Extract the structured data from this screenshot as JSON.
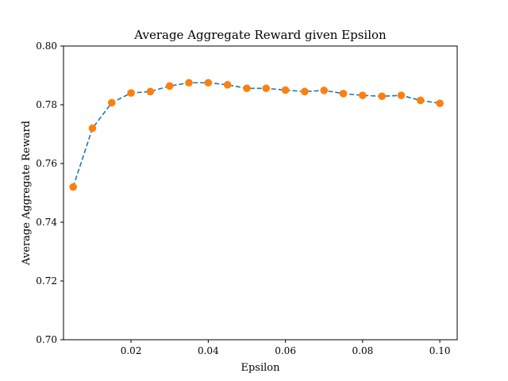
{
  "chart_data": {
    "type": "line",
    "title": "Average Aggregate Reward given Epsilon",
    "xlabel": "Epsilon",
    "ylabel": "Average Aggregate Reward",
    "xlim": [
      0.0025,
      0.1045
    ],
    "ylim": [
      0.7,
      0.8
    ],
    "xticks": [
      0.02,
      0.04,
      0.06,
      0.08,
      0.1
    ],
    "xtick_labels": [
      "0.02",
      "0.04",
      "0.06",
      "0.08",
      "0.10"
    ],
    "yticks": [
      0.7,
      0.72,
      0.74,
      0.76,
      0.78,
      0.8
    ],
    "ytick_labels": [
      "0.70",
      "0.72",
      "0.74",
      "0.76",
      "0.78",
      "0.80"
    ],
    "grid": false,
    "series": [
      {
        "line_color": "#1f77b4",
        "line_style": "dashed",
        "marker_color": "#ff7f0e",
        "marker": "circle",
        "x": [
          0.005,
          0.01,
          0.015,
          0.02,
          0.025,
          0.03,
          0.035,
          0.04,
          0.045,
          0.05,
          0.055,
          0.06,
          0.065,
          0.07,
          0.075,
          0.08,
          0.085,
          0.09,
          0.095,
          0.1
        ],
        "y": [
          0.752,
          0.772,
          0.7807,
          0.784,
          0.7845,
          0.7864,
          0.7875,
          0.7875,
          0.7868,
          0.7856,
          0.7856,
          0.785,
          0.7845,
          0.7849,
          0.7838,
          0.7832,
          0.7829,
          0.7832,
          0.7815,
          0.7805
        ]
      }
    ]
  }
}
